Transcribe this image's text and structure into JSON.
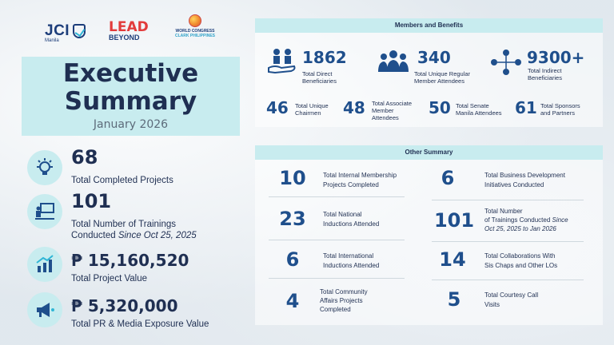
{
  "logos": {
    "jci_word": "JCI",
    "jci_sub": "Manila",
    "lead_line1": "LEAD",
    "lead_line2": "BEYOND",
    "wc_line1": "WORLD CONGRESS",
    "wc_line2": "CLARK PHILIPPINES"
  },
  "title": {
    "line1": "Executive",
    "line2": "Summary",
    "date": "January 2026"
  },
  "left_stats": [
    {
      "value": "68",
      "label": "Total Completed Projects",
      "icon": "gear-lightbulb-icon"
    },
    {
      "value": "101",
      "label": "Total Number of Trainings",
      "label2": "Conducted",
      "label2_italic": "Since Oct 25, 2025",
      "icon": "presentation-icon"
    },
    {
      "value": "₱ 15,160,520",
      "label": "Total Project Value",
      "icon": "growth-chart-icon"
    },
    {
      "value": "₱ 5,320,000",
      "label": "Total PR & Media Exposure Value",
      "icon": "megaphone-icon"
    }
  ],
  "members_panel": {
    "header": "Members and Benefits",
    "top": [
      {
        "value": "1862",
        "label1": "Total Direct",
        "label2": "Beneficiaries",
        "icon": "hand-people-icon"
      },
      {
        "value": "340",
        "label1": "Total Unique Regular",
        "label2": "Member Attendees",
        "icon": "group-icon"
      },
      {
        "value": "9300+",
        "label1": "Total Indirect",
        "label2": "Beneficiaries",
        "icon": "network-people-icon"
      }
    ],
    "bottom": [
      {
        "value": "46",
        "label1": "Total Unique",
        "label2": "Chairmen",
        "label3": ""
      },
      {
        "value": "48",
        "label1": "Total Associate",
        "label2": "Member",
        "label3": "Attendees"
      },
      {
        "value": "50",
        "label1": "Total Senate",
        "label2": "Manila Attendees",
        "label3": ""
      },
      {
        "value": "61",
        "label1": "Total Sponsors",
        "label2": "and Partners",
        "label3": ""
      }
    ]
  },
  "other_panel": {
    "header": "Other Summary",
    "left": [
      {
        "value": "10",
        "label1": "Total Internal Membership",
        "label2": "Projects Completed",
        "label3": ""
      },
      {
        "value": "23",
        "label1": "Total National",
        "label2": "Inductions Attended",
        "label3": ""
      },
      {
        "value": "6",
        "label1": "Total International",
        "label2": "Inductions Attended",
        "label3": ""
      },
      {
        "value": "4",
        "label1": "Total Community",
        "label2": "Affairs Projects",
        "label3": "Completed"
      }
    ],
    "right": [
      {
        "value": "6",
        "label1": "Total Business Development",
        "label2": "Initiatives Conducted",
        "label3": ""
      },
      {
        "value": "101",
        "label1": "Total Number",
        "label2": "of Trainings Conducted",
        "label2_italic": "Since",
        "label3": "Oct 25, 2025 to Jan 2026"
      },
      {
        "value": "14",
        "label1": "Total Collaborations With",
        "label2": "Sis Chaps and Other LOs",
        "label3": ""
      },
      {
        "value": "5",
        "label1": "Total Courtesy Call",
        "label2": "Visits",
        "label3": ""
      }
    ]
  },
  "colors": {
    "navy": "#1f2f52",
    "accent_blue": "#1f4f8c",
    "teal_light": "#c8ecef"
  }
}
